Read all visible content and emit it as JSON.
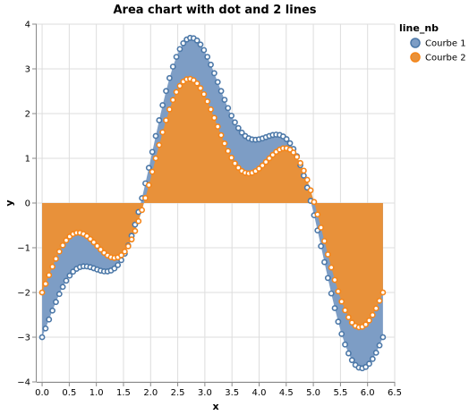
{
  "chart_data": {
    "type": "area",
    "title": "Area chart with dot and 2 lines",
    "xlabel": "x",
    "ylabel": "y",
    "xlim": [
      -0.1,
      6.5
    ],
    "ylim": [
      -4,
      4
    ],
    "x_ticks": [
      "0.0",
      "0.5",
      "1.0",
      "1.5",
      "2.0",
      "2.5",
      "3.0",
      "3.5",
      "4.0",
      "4.5",
      "5.0",
      "5.5",
      "6.0",
      "6.5"
    ],
    "x_tick_values": [
      0,
      0.5,
      1,
      1.5,
      2,
      2.5,
      3,
      3.5,
      4,
      4.5,
      5,
      5.5,
      6,
      6.5
    ],
    "y_ticks": [
      "−4",
      "−3",
      "−2",
      "−1",
      "0",
      "1",
      "2",
      "3",
      "4"
    ],
    "y_tick_values": [
      -4,
      -3,
      -2,
      -1,
      0,
      1,
      2,
      3,
      4
    ],
    "grid": true,
    "legend": {
      "title": "line_nb",
      "placement": "right"
    },
    "x_sampling": {
      "start": 0,
      "end": 6.2832,
      "count": 100
    },
    "series": [
      {
        "name": "Courbe 1",
        "color": "#4c78a8",
        "area_color": "#7d9dc5",
        "formula": "sin(3x) - 3cos(x)"
      },
      {
        "name": "Courbe 2",
        "color": "#f58518",
        "area_color": "#e8913a",
        "formula": "sin(3x) - 2cos(x)"
      }
    ]
  }
}
